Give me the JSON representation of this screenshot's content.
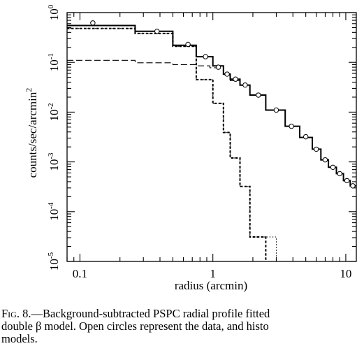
{
  "chart_data": {
    "type": "line",
    "title": "",
    "xlabel": "radius (arcmin)",
    "ylabel": "counts/sec/arcmin",
    "ylabel_sup": "2",
    "x_scale": "log",
    "y_scale": "log",
    "xlim": [
      0.08,
      12
    ],
    "ylim": [
      1e-05,
      1
    ],
    "x_ticks": [
      {
        "value": 0.1,
        "label": "0.1"
      },
      {
        "value": 1,
        "label": "1"
      },
      {
        "value": 10,
        "label": "10"
      }
    ],
    "y_ticks": [
      {
        "value": 1,
        "base": "10",
        "exp": "0"
      },
      {
        "value": 0.1,
        "base": "10",
        "exp": "-1"
      },
      {
        "value": 0.01,
        "base": "10",
        "exp": "-2"
      },
      {
        "value": 0.001,
        "base": "10",
        "exp": "-3"
      },
      {
        "value": 0.0001,
        "base": "10",
        "exp": "-4"
      },
      {
        "value": 1e-05,
        "base": "10",
        "exp": "-5"
      }
    ],
    "series": [
      {
        "style": "solid-thick",
        "edges": [
          0.08,
          0.26,
          0.5,
          0.75,
          1.0,
          1.2,
          1.35,
          1.6,
          1.9,
          2.5,
          3.5,
          4.5,
          5.6,
          6.5,
          7.4,
          8.5,
          9.6,
          10.8,
          12
        ],
        "values": [
          0.55,
          0.42,
          0.22,
          0.13,
          0.085,
          0.058,
          0.046,
          0.035,
          0.022,
          0.011,
          0.0052,
          0.0031,
          0.0018,
          0.0011,
          0.00078,
          0.00058,
          0.00042,
          0.00033
        ]
      },
      {
        "style": "dashed-thick",
        "edges": [
          0.08,
          0.26,
          0.5,
          0.75,
          1.0,
          1.2,
          1.35,
          1.6,
          1.9,
          2.5
        ],
        "values": [
          0.48,
          0.38,
          0.21,
          0.045,
          0.015,
          0.0039,
          0.0012,
          0.00032,
          3.1e-05
        ]
      },
      {
        "style": "dotted",
        "edges": [
          0.08,
          0.26,
          0.5,
          0.75,
          1.0,
          1.2,
          1.35,
          1.6,
          1.9,
          3.0
        ],
        "values": [
          0.48,
          0.38,
          0.21,
          0.045,
          0.015,
          0.0039,
          0.0012,
          0.00032,
          3.1e-05
        ]
      },
      {
        "style": "long-dash",
        "edges": [
          0.08,
          0.26,
          0.5,
          0.75,
          0.95,
          1.2,
          1.35,
          1.6,
          1.9,
          2.5,
          3.5,
          4.5,
          5.6,
          6.5,
          7.4,
          8.5,
          9.6,
          10.8,
          12
        ],
        "values": [
          0.11,
          0.098,
          0.09,
          0.085,
          0.078,
          0.055,
          0.043,
          0.035,
          0.022,
          0.011,
          0.0052,
          0.0031,
          0.0018,
          0.0011,
          0.00078,
          0.00058,
          0.00042,
          0.00033
        ]
      }
    ],
    "data_points": [
      {
        "x": 0.125,
        "y": 0.62
      },
      {
        "x": 0.38,
        "y": 0.42
      },
      {
        "x": 0.65,
        "y": 0.23
      },
      {
        "x": 0.88,
        "y": 0.13
      },
      {
        "x": 1.1,
        "y": 0.08
      },
      {
        "x": 1.28,
        "y": 0.058
      },
      {
        "x": 1.48,
        "y": 0.046
      },
      {
        "x": 1.75,
        "y": 0.035
      },
      {
        "x": 2.2,
        "y": 0.022
      },
      {
        "x": 3.0,
        "y": 0.011
      },
      {
        "x": 3.9,
        "y": 0.0052
      },
      {
        "x": 5.0,
        "y": 0.0032
      },
      {
        "x": 6.0,
        "y": 0.0018
      },
      {
        "x": 7.0,
        "y": 0.0011
      },
      {
        "x": 8.0,
        "y": 0.00078
      },
      {
        "x": 9.0,
        "y": 0.00058
      },
      {
        "x": 10.2,
        "y": 0.00042
      },
      {
        "x": 11.3,
        "y": 0.00033
      }
    ]
  },
  "caption": {
    "fig_label": "Fig. 8.",
    "line1": "—Background-subtracted PSPC radial profile fitted",
    "line2": "double β model. Open circles represent the data, and histo",
    "line3": "models."
  }
}
